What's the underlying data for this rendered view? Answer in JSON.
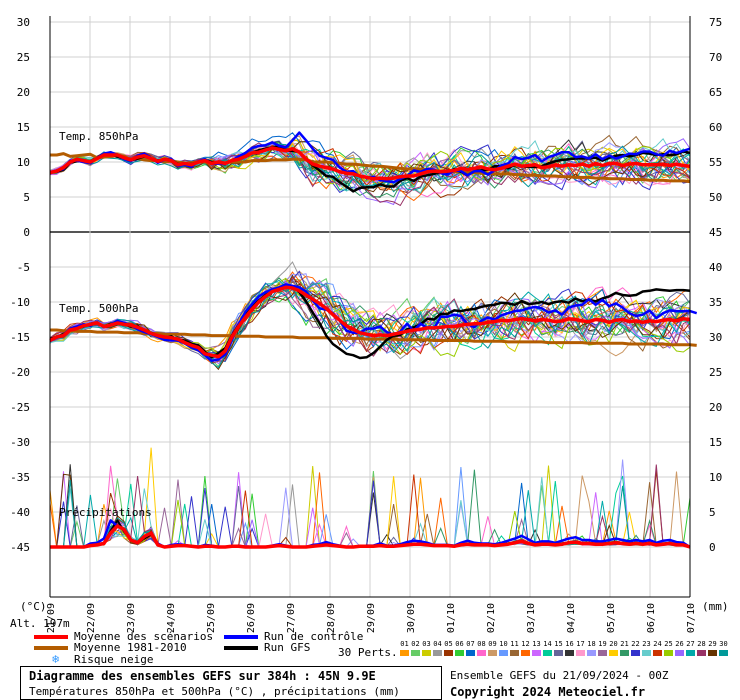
{
  "chart_data": {
    "type": "line",
    "x_dates": [
      "21/09",
      "22/09",
      "23/09",
      "24/09",
      "25/09",
      "26/09",
      "27/09",
      "28/09",
      "29/09",
      "30/09",
      "01/10",
      "02/10",
      "03/10",
      "04/10",
      "05/10",
      "06/10",
      "07/10"
    ],
    "x_step_hours": 6,
    "left_axis": {
      "label": "(°C)",
      "ticks": [
        30,
        25,
        20,
        15,
        10,
        5,
        0,
        -5,
        -10,
        -15,
        -20,
        -25,
        -30,
        -35,
        -40,
        -45
      ],
      "range": [
        -45,
        30
      ]
    },
    "right_axis": {
      "label": "(mm)",
      "ticks_top": [
        75,
        70,
        65,
        60,
        55,
        50,
        45
      ],
      "ticks_bottom": [
        40,
        35,
        30,
        25,
        20,
        15,
        10,
        5,
        0
      ]
    },
    "altitude_label": "Alt. 197m",
    "sections": [
      {
        "label": "Temp. 850hPa"
      },
      {
        "label": "Temp. 500hPa"
      },
      {
        "label": "Précipitations"
      }
    ],
    "series": {
      "t850_mean": [
        8.5,
        8.7,
        9.2,
        10,
        10.4,
        10.2,
        10,
        10.5,
        11,
        11,
        11,
        10.6,
        10.3,
        10.7,
        10.9,
        10.5,
        10.1,
        10.4,
        10.2,
        9.6,
        9.8,
        9.6,
        10,
        10.2,
        9.8,
        10,
        9.8,
        10.2,
        10.4,
        10.8,
        11.3,
        11.4,
        11.7,
        12,
        11.8,
        11.6,
        11.9,
        11.4,
        10.4,
        9.7,
        9.4,
        9.2,
        9,
        8.6,
        8.4,
        8.3,
        8,
        7.8,
        7.6,
        7.7,
        7.6,
        7.7,
        7.9,
        8,
        8,
        8.3,
        8.6,
        8.7,
        8.6,
        8.7,
        8.8,
        9.1,
        8.9,
        9.1,
        9.3,
        9,
        8.9,
        9.1,
        9.4,
        9.7,
        9.4,
        9.5,
        9.6,
        9.2,
        9.3,
        9.6,
        9.4,
        9.6,
        9.5,
        9.7,
        9.4,
        9.8,
        9.5,
        9.8,
        9.8,
        9.5,
        9.7,
        9.8,
        9.6,
        9.6,
        9.6,
        9.7,
        9.5,
        9.7,
        9.5,
        9.4
      ],
      "t850_clim": [
        11,
        11,
        11.2,
        10.8,
        10.9,
        11,
        11.1,
        10.6,
        10.7,
        10.8,
        10.9,
        10.8,
        10.4,
        10.5,
        10.3,
        10.2,
        10.2,
        10,
        10.1,
        10,
        9.8,
        9.9,
        10,
        10,
        9.7,
        9.8,
        9.9,
        10,
        10,
        10,
        10.2,
        10.2,
        10.2,
        10.3,
        10.3,
        10.3,
        10.4,
        10.4,
        10.3,
        10,
        10,
        10,
        9.9,
        9.8,
        9.7,
        9.7,
        9.6,
        9.5,
        9.4,
        9.4,
        9.3,
        9.2,
        9.1,
        9,
        9,
        9,
        8.9,
        8.8,
        8.7,
        8.7,
        8.6,
        8.6,
        8.5,
        8.5,
        8.4,
        8.4,
        8.3,
        8.3,
        8.3,
        8.2,
        8.2,
        8.1,
        8.1,
        8,
        8,
        8,
        7.9,
        7.9,
        7.8,
        7.8,
        7.8,
        7.7,
        7.7,
        7.6,
        7.6,
        7.6,
        7.5,
        7.5,
        7.5,
        7.4,
        7.4,
        7.4,
        7.3,
        7.3,
        7.3,
        7.2
      ],
      "t850_control": [
        8.5,
        8.8,
        9,
        10.2,
        10.2,
        10,
        9.8,
        10.6,
        11.2,
        11.4,
        11,
        10.4,
        10.1,
        10.9,
        11.2,
        10.6,
        9.9,
        10.3,
        10.4,
        9.4,
        9.6,
        9.3,
        10.1,
        10.4,
        9.7,
        9.8,
        9.7,
        10.2,
        10.8,
        11.3,
        12,
        12.3,
        12.4,
        12.8,
        12.3,
        12.1,
        13.1,
        14.2,
        13.1,
        11.9,
        10.9,
        10.6,
        10.3,
        9.2,
        8.6,
        8.7,
        7.9,
        7.8,
        7.9,
        7.4,
        7.3,
        7.1,
        7.6,
        8,
        8.8,
        8.6,
        9,
        8.9,
        8.4,
        8.2,
        8.8,
        8.7,
        8.1,
        8.7,
        8.7,
        8.2,
        8.8,
        9.5,
        9.8,
        10.7,
        10.4,
        10.6,
        11,
        10.1,
        10.7,
        11,
        11.4,
        11.4,
        10.7,
        10.8,
        10.5,
        11.1,
        10.4,
        10.9,
        10.5,
        10.8,
        11.2,
        11.1,
        11.5,
        11.5,
        11.1,
        10.9,
        11.6,
        11.3,
        11.6,
        11.9
      ],
      "t850_gfs": [
        8.5,
        8.6,
        8.9,
        9.9,
        10.1,
        10.1,
        9.9,
        10.5,
        11,
        11.1,
        10.8,
        10.5,
        10.2,
        10.5,
        10.8,
        10.5,
        10.2,
        10.4,
        10.3,
        9.7,
        9.8,
        9.7,
        10,
        10.3,
        10,
        10,
        9.8,
        10.2,
        10.5,
        10.9,
        11.3,
        11.7,
        11.9,
        12.1,
        12.2,
        11.6,
        11.6,
        11.4,
        10.4,
        9.5,
        8.8,
        8,
        7.9,
        7.1,
        6.5,
        5.8,
        6.3,
        6.4,
        6.4,
        6.8,
        6.5,
        6.5,
        7.3,
        7.7,
        7.3,
        7.9,
        8.1,
        8.3,
        8.5,
        8.4,
        9,
        8.6,
        8.1,
        8.7,
        8.8,
        8.9,
        9.4,
        9.4,
        9.1,
        9.6,
        9.4,
        9.3,
        9.3,
        9.4,
        9.8,
        10.1,
        10.3,
        10.4,
        10.5,
        10.5,
        10.5,
        10.6,
        10.2,
        10.6,
        10.9,
        11,
        10.8,
        11,
        11.3,
        11.2,
        11,
        11.1,
        11,
        11.1,
        11.5,
        11.3
      ],
      "t500_mean": [
        -15.5,
        -15,
        -14.8,
        -14,
        -13.8,
        -13.4,
        -13.2,
        -13,
        -13.5,
        -13.3,
        -13,
        -13.2,
        -13.3,
        -13.6,
        -14,
        -14.5,
        -14.8,
        -15,
        -15.1,
        -15.3,
        -15.8,
        -16.2,
        -16.5,
        -17.4,
        -17.6,
        -17.8,
        -17,
        -15,
        -13.5,
        -12.2,
        -11,
        -10,
        -9.2,
        -8.5,
        -8.2,
        -7.9,
        -8,
        -8.4,
        -9,
        -9.6,
        -10.2,
        -10.9,
        -11.8,
        -12.6,
        -13.4,
        -13.9,
        -14.4,
        -14.6,
        -14.8,
        -14.7,
        -14.8,
        -14.6,
        -14.4,
        -14.2,
        -14,
        -13.9,
        -13.7,
        -13.7,
        -13.6,
        -13.5,
        -13.5,
        -13.3,
        -13.2,
        -13.1,
        -13.1,
        -12.9,
        -12.8,
        -12.6,
        -12.7,
        -12.5,
        -12.4,
        -12.5,
        -12.7,
        -12.5,
        -12.6,
        -12.8,
        -12.7,
        -12.4,
        -12.5,
        -12.7,
        -12.8,
        -12.5,
        -12.6,
        -12.9,
        -12.6,
        -12.5,
        -12.8,
        -12.7,
        -12.9,
        -12.7,
        -12.8,
        -12.6,
        -12.5,
        -12.7,
        -12.4,
        -12.5
      ],
      "t500_clim": [
        -14,
        -14,
        -14.1,
        -14.1,
        -14.2,
        -14.2,
        -14.2,
        -14.3,
        -14.3,
        -14.3,
        -14.3,
        -14.4,
        -14.4,
        -14.4,
        -14.5,
        -14.5,
        -14.5,
        -14.6,
        -14.6,
        -14.6,
        -14.6,
        -14.7,
        -14.7,
        -14.7,
        -14.8,
        -14.8,
        -14.8,
        -14.8,
        -14.9,
        -14.9,
        -14.9,
        -14.9,
        -15,
        -15,
        -15,
        -15,
        -15,
        -15.1,
        -15.1,
        -15.1,
        -15.1,
        -15.1,
        -15.2,
        -15.2,
        -15.2,
        -15.2,
        -15.2,
        -15.3,
        -15.3,
        -15.3,
        -15.3,
        -15.3,
        -15.4,
        -15.4,
        -15.4,
        -15.4,
        -15.4,
        -15.5,
        -15.5,
        -15.5,
        -15.5,
        -15.5,
        -15.5,
        -15.6,
        -15.6,
        -15.6,
        -15.6,
        -15.6,
        -15.7,
        -15.7,
        -15.7,
        -15.7,
        -15.7,
        -15.7,
        -15.8,
        -15.8,
        -15.8,
        -15.8,
        -15.8,
        -15.8,
        -15.9,
        -15.9,
        -15.9,
        -15.9,
        -15.9,
        -15.9,
        -16,
        -16,
        -16,
        -16,
        -16,
        -16,
        -16.1,
        -16.1,
        -16.1,
        -16.1,
        -16.2
      ],
      "t500_control": [
        -15.6,
        -15.1,
        -14.7,
        -13.8,
        -13.5,
        -13.2,
        -13.4,
        -12.9,
        -13.6,
        -13.2,
        -12.7,
        -13,
        -13.3,
        -13.9,
        -14.3,
        -14.6,
        -15,
        -15.4,
        -15.5,
        -15.5,
        -15.9,
        -16.5,
        -16.9,
        -17.6,
        -18.4,
        -18.2,
        -17.5,
        -15.4,
        -13.2,
        -11.4,
        -10.3,
        -9.2,
        -8.6,
        -8.2,
        -7.9,
        -7.5,
        -7.7,
        -7.9,
        -8.5,
        -9.8,
        -10.9,
        -11.1,
        -11.6,
        -12.6,
        -14.1,
        -14.4,
        -14.4,
        -13.8,
        -13.8,
        -13.5,
        -14.3,
        -14.7,
        -14.2,
        -13.1,
        -14.1,
        -13.1,
        -13.7,
        -13.8,
        -12.1,
        -12.1,
        -11.8,
        -12,
        -13.2,
        -13.6,
        -12.7,
        -12.2,
        -12.5,
        -11.9,
        -11.6,
        -11.3,
        -11.2,
        -10.9,
        -10.7,
        -10.9,
        -11.5,
        -11.2,
        -11.8,
        -10.8,
        -10.5,
        -10.4,
        -9.6,
        -10.4,
        -9.7,
        -10.6,
        -10.2,
        -10.8,
        -11.6,
        -12,
        -11.8,
        -11.2,
        -12.3,
        -11.6,
        -11.2,
        -11.3,
        -11.3,
        -11.3,
        -11.6
      ],
      "t500_gfs": [
        -15.3,
        -15,
        -14.6,
        -14,
        -13.8,
        -13.5,
        -13.1,
        -13,
        -13.5,
        -13.1,
        -12.9,
        -13.2,
        -13.5,
        -13.4,
        -14.2,
        -14.4,
        -14.8,
        -15.1,
        -14.9,
        -15.4,
        -15.5,
        -16,
        -16.2,
        -17.1,
        -17.9,
        -17.3,
        -16.6,
        -14.8,
        -13.2,
        -11.6,
        -10.6,
        -9.8,
        -9,
        -8.5,
        -8,
        -7.5,
        -7.8,
        -8.6,
        -9.9,
        -11.5,
        -13,
        -14.8,
        -16,
        -16.7,
        -17.4,
        -17.6,
        -18,
        -17.9,
        -17.3,
        -16.4,
        -15.4,
        -14.8,
        -14.7,
        -13.9,
        -13.6,
        -13.2,
        -12.4,
        -12.5,
        -11.7,
        -11.7,
        -11.2,
        -11.3,
        -11.1,
        -11,
        -10.7,
        -10.5,
        -10.4,
        -10.1,
        -10.2,
        -10.4,
        -9.9,
        -10.3,
        -10.2,
        -10,
        -10.3,
        -10,
        -9.9,
        -10.1,
        -9.5,
        -9.9,
        -9.7,
        -9.9,
        -9.5,
        -9.2,
        -8.7,
        -9,
        -9.1,
        -9,
        -8.5,
        -8.4,
        -8.2,
        -8.3,
        -8.4,
        -8.3,
        -8.3,
        -8.4
      ],
      "precip_mean": [
        0,
        0,
        0,
        0,
        0,
        0,
        0.2,
        0.3,
        0.5,
        2,
        3,
        2.5,
        1,
        0.6,
        1.5,
        2,
        0.3,
        0,
        0.1,
        0.2,
        0.2,
        0.1,
        0,
        0.1,
        0.1,
        0,
        0,
        0.1,
        0.1,
        0,
        0,
        0,
        0,
        0.1,
        0.2,
        0.1,
        0,
        0,
        0,
        0.1,
        0.2,
        0.3,
        0.2,
        0.1,
        0,
        0,
        0.1,
        0.1,
        0.1,
        0.2,
        0.1,
        0.1,
        0.2,
        0.3,
        0.4,
        0.4,
        0.3,
        0.2,
        0.2,
        0.2,
        0.1,
        0.3,
        0.4,
        0.3,
        0.3,
        0.3,
        0.2,
        0.3,
        0.4,
        0.6,
        0.8,
        0.5,
        0.3,
        0.4,
        0.4,
        0.3,
        0.4,
        0.6,
        0.7,
        0.5,
        0.5,
        0.4,
        0.4,
        0.5,
        0.6,
        0.5,
        0.4,
        0.5,
        0.4,
        0.5,
        0.3,
        0.4,
        0.5,
        0.3,
        0.3,
        0
      ],
      "precip_control": [
        0,
        0,
        0,
        0,
        0,
        0,
        0.5,
        0.6,
        1.2,
        3.8,
        3,
        2.5,
        1,
        0.5,
        1.5,
        2,
        0.5,
        0,
        0.3,
        0.4,
        0.3,
        0.1,
        0,
        0.3,
        0.2,
        0,
        0,
        0.1,
        0.2,
        0,
        0,
        0,
        0,
        0.2,
        0.4,
        0.2,
        0,
        0,
        0,
        0.3,
        0.4,
        0.7,
        0.4,
        0.2,
        0,
        0,
        0.1,
        0.2,
        0.2,
        0.5,
        0.2,
        0.2,
        0.4,
        0.7,
        0.9,
        0.8,
        0.6,
        0.3,
        0.3,
        0.3,
        0.2,
        0.6,
        0.9,
        0.6,
        0.5,
        0.5,
        0.4,
        0.6,
        0.9,
        1.2,
        1.6,
        1.1,
        0.6,
        0.8,
        0.8,
        0.6,
        0.9,
        1.2,
        1.4,
        1,
        1,
        0.8,
        0.8,
        1,
        1.2,
        1,
        0.8,
        1,
        0.8,
        1,
        0.6,
        0.9,
        1,
        0.7,
        0.6,
        0
      ],
      "precip_gfs": [
        0,
        0,
        0,
        0,
        0,
        0,
        0.3,
        0.4,
        0.6,
        2.3,
        3.8,
        2.2,
        1,
        0.5,
        1.2,
        1.8,
        0.3,
        0,
        0.2,
        0.2,
        0.2,
        0.1,
        0,
        0.1,
        0.1,
        0,
        0,
        0.1,
        0.1,
        0,
        0,
        0,
        0,
        0.1,
        0.2,
        0.1,
        0,
        0,
        0,
        0.2,
        0.2,
        0.4,
        0.2,
        0.1,
        0,
        0,
        0.1,
        0.1,
        0.1,
        0.2,
        0.1,
        0.1,
        0.2,
        0.4,
        0.5,
        0.5,
        0.4,
        0.2,
        0.2,
        0.2,
        0.1,
        0.3,
        0.5,
        0.4,
        0.3,
        0.3,
        0.2,
        0.4,
        0.5,
        0.7,
        0.9,
        0.6,
        0.4,
        0.5,
        0.5,
        0.4,
        0.5,
        0.7,
        0.8,
        0.6,
        0.6,
        0.5,
        0.5,
        0.6,
        0.7,
        0.6,
        0.5,
        0.6,
        0.5,
        0.6,
        0.4,
        0.5,
        0.6,
        0.4,
        0.3,
        0
      ]
    },
    "legend": [
      {
        "label": "Moyenne des scénarios",
        "color": "#ff0000"
      },
      {
        "label": "Moyenne 1981-2010",
        "color": "#b35c00"
      },
      {
        "label": "Run de contrôle",
        "color": "#0000ff"
      },
      {
        "label": "Run GFS",
        "color": "#000000"
      }
    ],
    "snow_label": "Risque neige",
    "perts_label": "30 Perts.",
    "pert_ids": [
      "01",
      "02",
      "03",
      "04",
      "05",
      "06",
      "07",
      "08",
      "09",
      "10",
      "11",
      "12",
      "13",
      "14",
      "15",
      "16",
      "17",
      "18",
      "19",
      "20",
      "21",
      "22",
      "23",
      "24",
      "25",
      "26",
      "27",
      "28",
      "29",
      "30"
    ],
    "pert_colors": [
      "#ff9900",
      "#66cc66",
      "#cccc00",
      "#999999",
      "#993300",
      "#33cc33",
      "#0066cc",
      "#ff66cc",
      "#cc9966",
      "#6699ff",
      "#996633",
      "#ff6600",
      "#cc66ff",
      "#00cc99",
      "#666699",
      "#333333",
      "#ff99cc",
      "#9999ff",
      "#996699",
      "#ffcc00",
      "#339966",
      "#3333cc",
      "#66cccc",
      "#cc3300",
      "#99cc00",
      "#9966ff",
      "#00aaaa",
      "#993366",
      "#663300",
      "#009999"
    ]
  },
  "footer": {
    "title": "Diagramme des ensembles GEFS sur 384h : 45N 9.9E",
    "subtitle": "Températures 850hPa et 500hPa (°C) , précipitations (mm)",
    "ensemble": "Ensemble GEFS du 21/09/2024 - 00Z",
    "copyright": "Copyright 2024 Meteociel.fr"
  }
}
